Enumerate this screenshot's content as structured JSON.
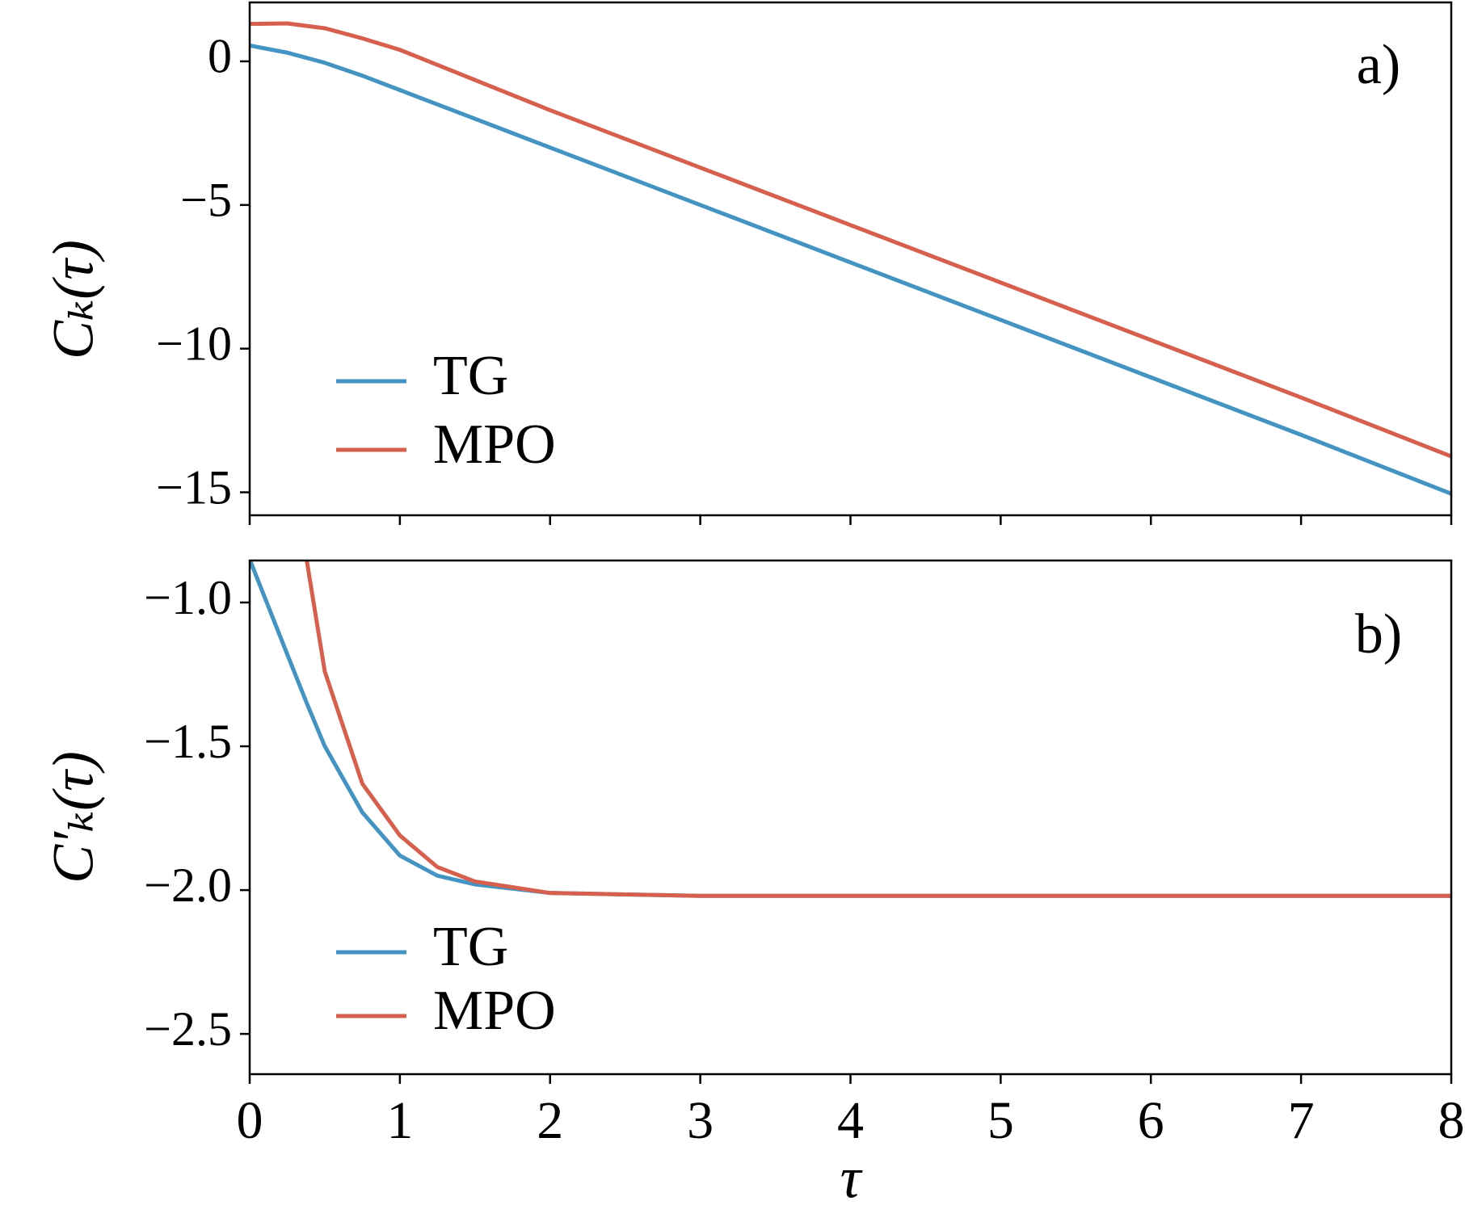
{
  "chart_data": [
    {
      "type": "line",
      "panel_label": "a)",
      "ylabel": "Cₖ(τ)",
      "legend": "lower left",
      "x": [
        0,
        0.25,
        0.5,
        0.75,
        1,
        1.5,
        2,
        3,
        4,
        5,
        6,
        7,
        8
      ],
      "series": [
        {
          "name": "TG",
          "color": "#4393c3",
          "values": [
            0.55,
            0.3,
            -0.05,
            -0.5,
            -1.0,
            -2.0,
            -3.0,
            -5.0,
            -7.0,
            -9.0,
            -11.0,
            -13.0,
            -15.05
          ]
        },
        {
          "name": "MPO",
          "color": "#d6604d",
          "values": [
            1.3,
            1.32,
            1.15,
            0.8,
            0.4,
            -0.65,
            -1.7,
            -3.7,
            -5.7,
            -7.7,
            -9.7,
            -11.7,
            -13.75
          ]
        }
      ],
      "xlim": [
        0,
        8
      ],
      "xticks": [
        0,
        1,
        2,
        3,
        4,
        5,
        6,
        7,
        8
      ],
      "ylim": [
        -15.8,
        2.05
      ],
      "yticks": [
        {
          "value": 0,
          "label": "0"
        },
        {
          "value": -5,
          "label": "−5"
        },
        {
          "value": -10,
          "label": "−10"
        },
        {
          "value": -15,
          "label": "−15"
        }
      ]
    },
    {
      "type": "line",
      "panel_label": "b)",
      "ylabel": "C′ₖ(τ)",
      "xlabel": "τ",
      "legend": "lower left",
      "x": [
        0,
        0.25,
        0.38,
        0.5,
        0.75,
        1,
        1.25,
        1.5,
        2,
        3,
        4,
        5,
        6,
        7,
        8
      ],
      "series": [
        {
          "name": "TG",
          "color": "#4393c3",
          "values": [
            -0.85,
            -1.18,
            -1.35,
            -1.5,
            -1.73,
            -1.88,
            -1.95,
            -1.98,
            -2.01,
            -2.02,
            -2.02,
            -2.02,
            -2.02,
            -2.02,
            -2.02
          ]
        },
        {
          "name": "MPO",
          "color": "#d6604d",
          "values": [
            null,
            null,
            -0.854,
            -1.24,
            -1.63,
            -1.81,
            -1.92,
            -1.97,
            -2.01,
            -2.02,
            -2.02,
            -2.02,
            -2.02,
            -2.02,
            -2.02
          ]
        }
      ],
      "xlim": [
        0,
        8
      ],
      "xticks": [
        0,
        1,
        2,
        3,
        4,
        5,
        6,
        7,
        8
      ],
      "ylim": [
        -2.64,
        -0.854
      ],
      "yticks": [
        {
          "value": -1.0,
          "label": "−1.0"
        },
        {
          "value": -1.5,
          "label": "−1.5"
        },
        {
          "value": -2.0,
          "label": "−2.0"
        },
        {
          "value": -2.5,
          "label": "−2.5"
        }
      ]
    }
  ]
}
